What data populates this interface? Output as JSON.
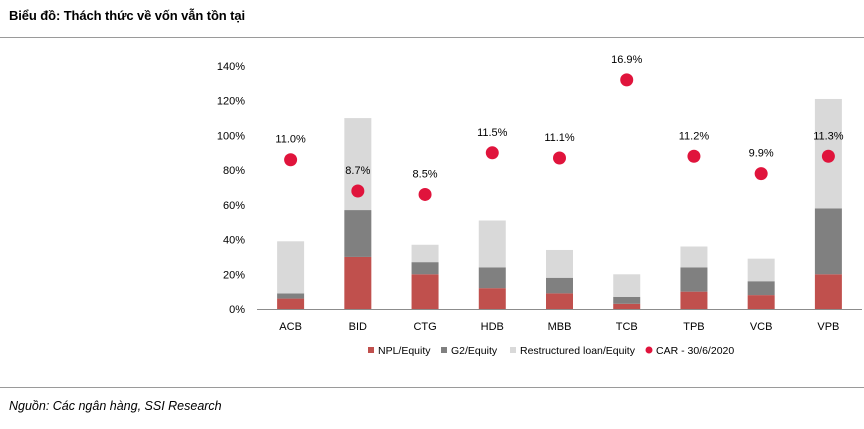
{
  "header": {
    "title": "Biểu đồ: Thách thức về vốn vẫn tồn tại"
  },
  "footer": {
    "source": "Nguồn: Các ngân hàng, SSI Research"
  },
  "colors": {
    "npl": "#c0504d",
    "g2": "#808080",
    "restructured": "#d9d9d9",
    "car": "#e0143c",
    "axis": "#8c8c8c",
    "rule": "#9a9a9a"
  },
  "chart_data": {
    "type": "bar",
    "stacked": true,
    "categories": [
      "ACB",
      "BID",
      "CTG",
      "HDB",
      "MBB",
      "TCB",
      "TPB",
      "VCB",
      "VPB"
    ],
    "series": [
      {
        "name": "NPL/Equity",
        "values": [
          6,
          30,
          20,
          12,
          9,
          3,
          10,
          8,
          20
        ]
      },
      {
        "name": "G2/Equity",
        "values": [
          3,
          27,
          7,
          12,
          9,
          4,
          14,
          8,
          38
        ]
      },
      {
        "name": "Restructured loan/Equity",
        "values": [
          30,
          53,
          10,
          27,
          16,
          13,
          12,
          13,
          63
        ]
      }
    ],
    "overlay": {
      "type": "scatter",
      "name": "CAR - 30/6/2020",
      "values": [
        86,
        68,
        66,
        90,
        87,
        132,
        88,
        78,
        88
      ],
      "labels": [
        "11.0%",
        "8.7%",
        "8.5%",
        "11.5%",
        "11.1%",
        "16.9%",
        "11.2%",
        "9.9%",
        "11.3%"
      ]
    },
    "yticks": [
      "0%",
      "20%",
      "40%",
      "60%",
      "80%",
      "100%",
      "120%",
      "140%"
    ],
    "ylim": [
      0,
      140
    ],
    "legend": "bottom",
    "grid": false
  }
}
